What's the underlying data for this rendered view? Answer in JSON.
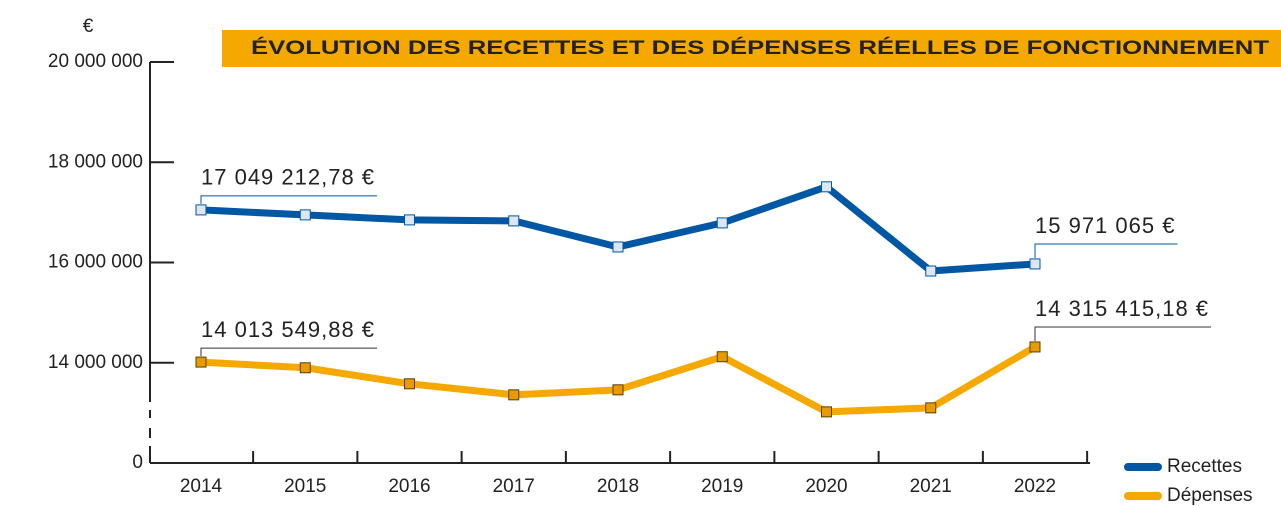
{
  "chart_data": {
    "type": "line",
    "title": "ÉVOLUTION DES RECETTES ET DES DÉPENSES RÉELLES DE FONCTIONNEMENT",
    "y_label": "€",
    "categories": [
      "2014",
      "2015",
      "2016",
      "2017",
      "2018",
      "2019",
      "2020",
      "2021",
      "2022"
    ],
    "series": [
      {
        "name": "Recettes",
        "color": "#0057a3",
        "marker_fill": "#dde7f3",
        "values": [
          17049212.78,
          16950000,
          16850000,
          16830000,
          16310000,
          16790000,
          17510000,
          15830000,
          15971065
        ],
        "value_labels": [
          "17 049 212,78 €",
          null,
          null,
          null,
          null,
          null,
          null,
          null,
          "15 971 065 €"
        ]
      },
      {
        "name": "Dépenses",
        "color": "#f5a800",
        "marker_fill": "#e89a00",
        "values": [
          14013549.88,
          13900000,
          13580000,
          13360000,
          13460000,
          14120000,
          13020000,
          13100000,
          14315415.18
        ],
        "value_labels": [
          "14 013 549,88 €",
          null,
          null,
          null,
          null,
          null,
          null,
          null,
          "14 315 415,18 €"
        ]
      }
    ],
    "ylim": [
      0,
      20000000
    ],
    "ybreak": [
      0,
      12000000
    ],
    "yticks": [
      {
        "value": 0,
        "label": "0"
      },
      {
        "value": 14000000,
        "label": "14 000 000"
      },
      {
        "value": 16000000,
        "label": "16 000 000"
      },
      {
        "value": 18000000,
        "label": "18 000 000"
      },
      {
        "value": 20000000,
        "label": "20 000 000"
      }
    ],
    "legend": "bottom-right"
  }
}
